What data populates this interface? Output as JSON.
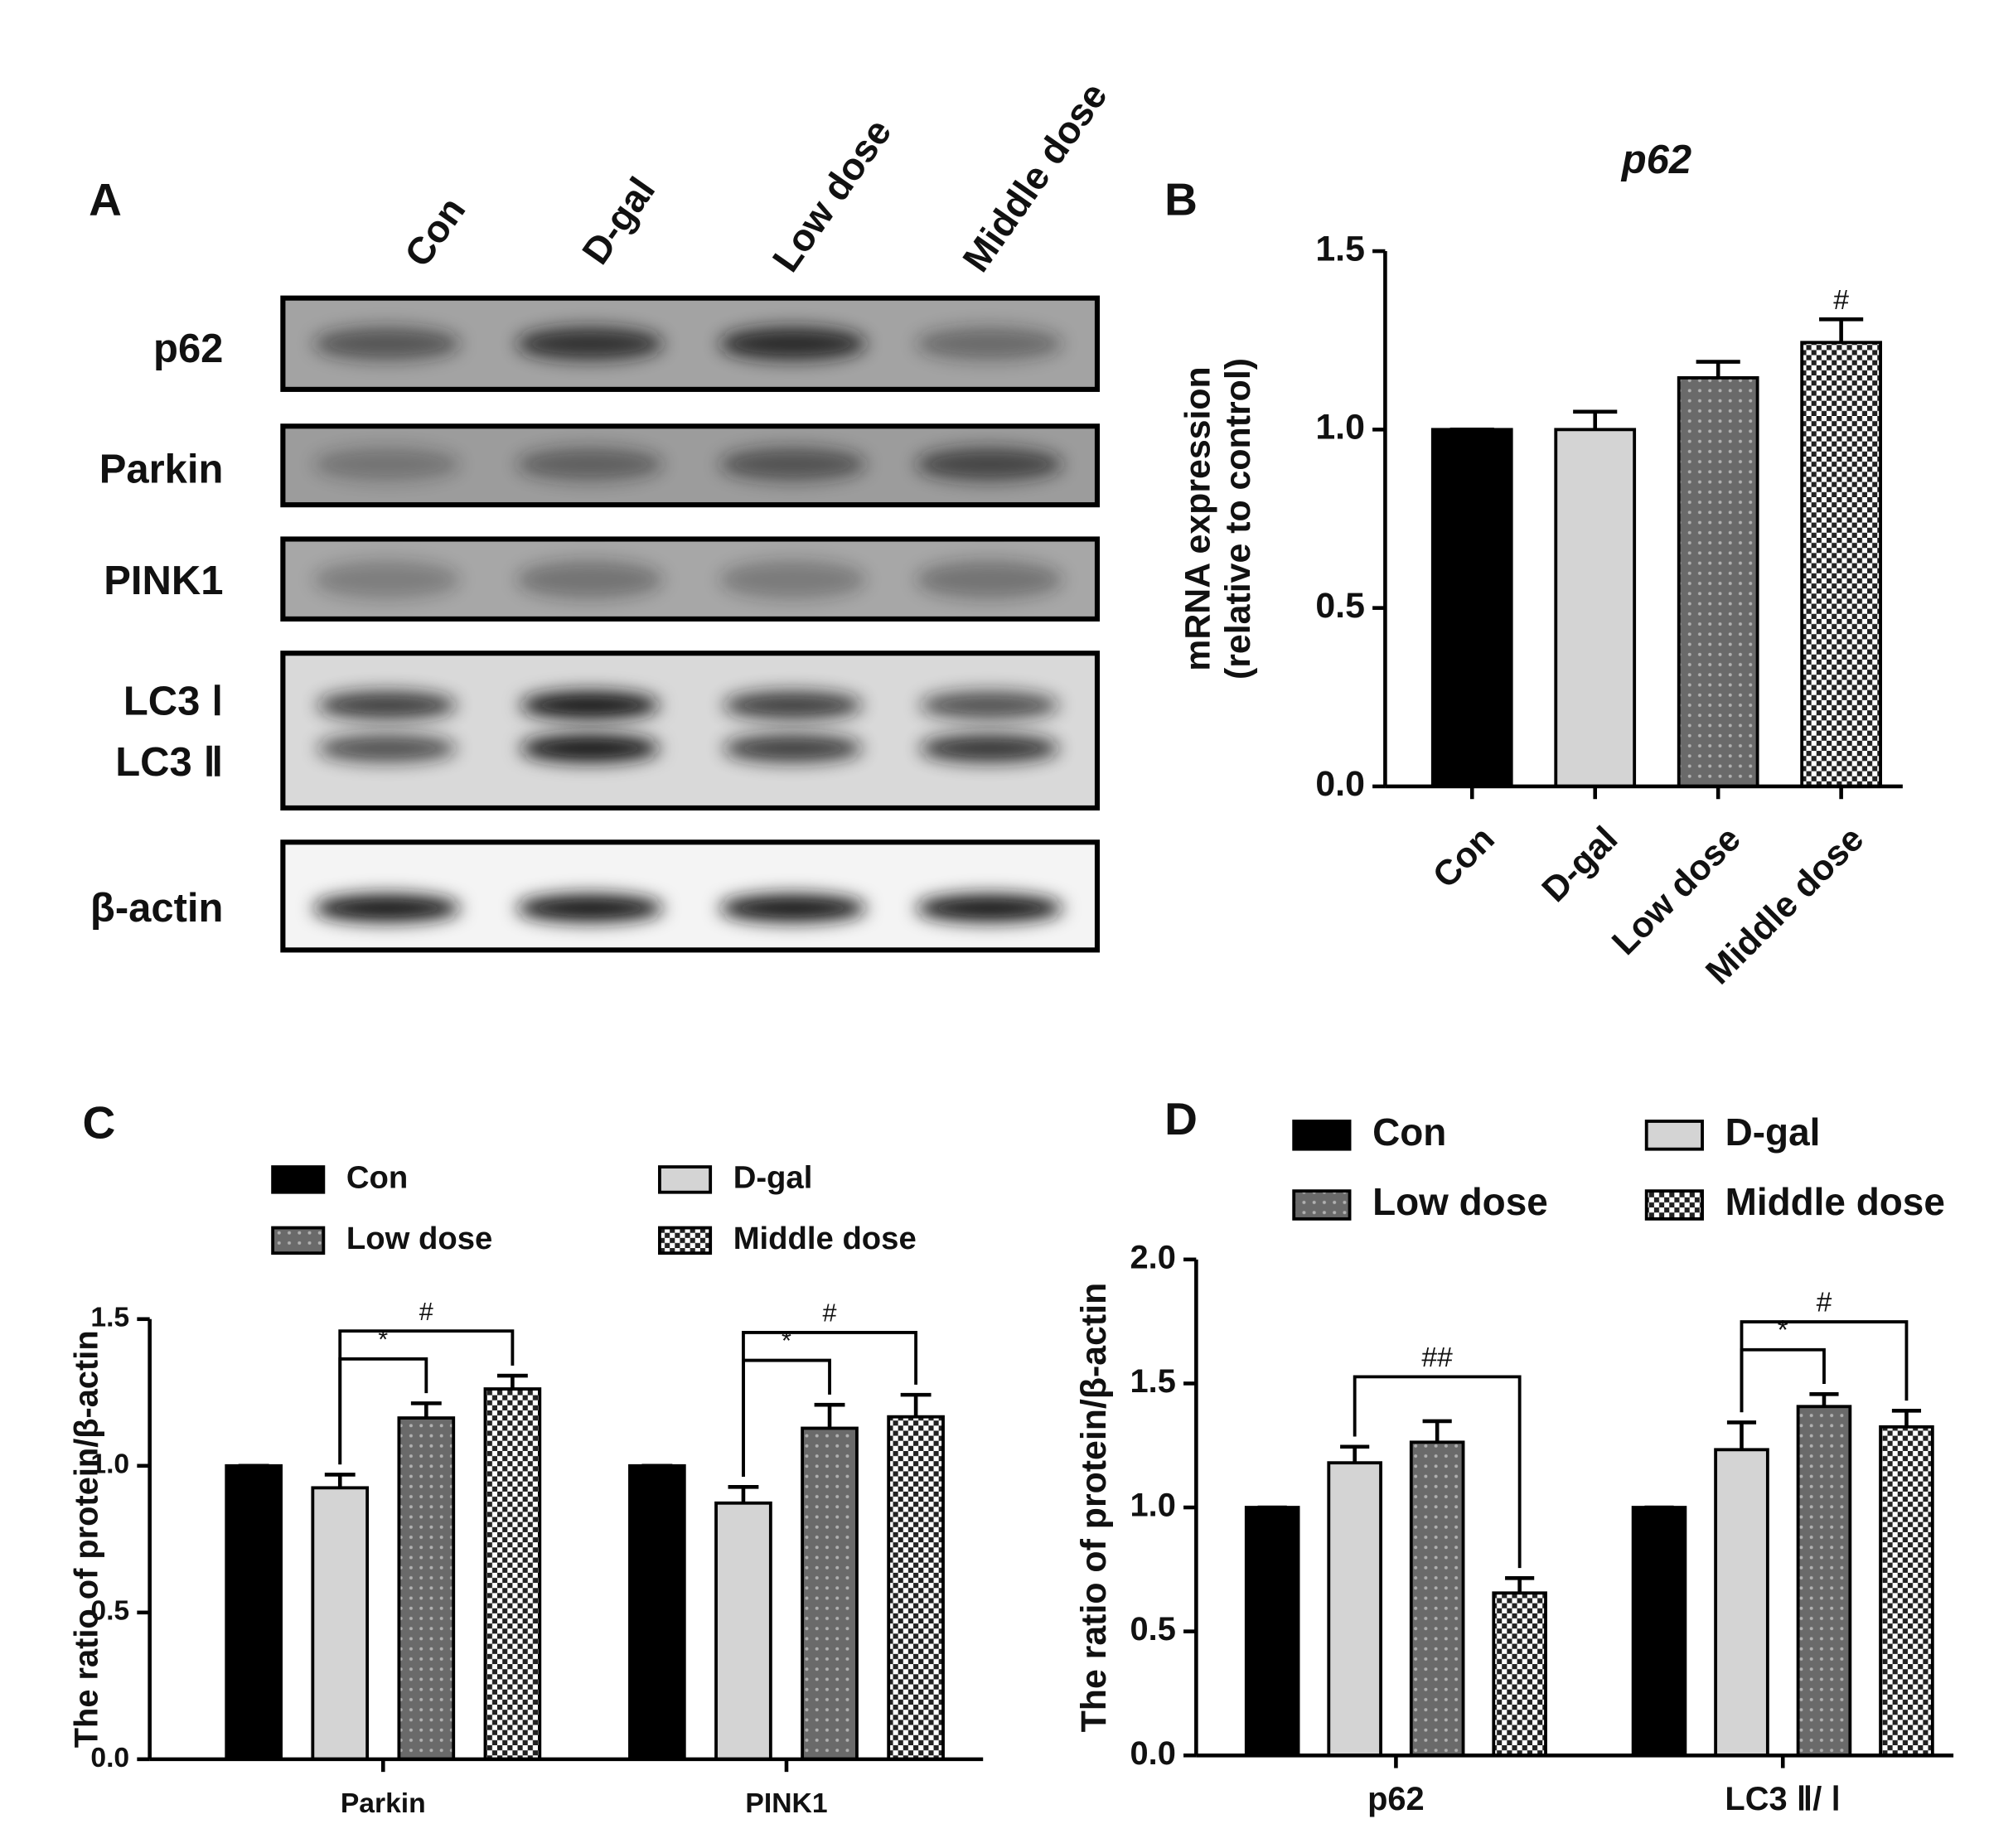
{
  "panel_a": {
    "label": "A",
    "lanes": [
      "Con",
      "D-gal",
      "Low dose",
      "Middle dose"
    ],
    "rows": [
      "p62",
      "Parkin",
      "PINK1",
      "LC3 Ⅰ",
      "LC3 Ⅱ",
      "β-actin"
    ]
  },
  "chart_data": [
    {
      "type": "bar",
      "label": "B",
      "title": "p62",
      "y_label": [
        "mRNA expression",
        "(relative to control)"
      ],
      "categories": [
        "Con",
        "D-gal",
        "Low dose",
        "Middle dose"
      ],
      "values": [
        1.0,
        1.0,
        1.145,
        1.244
      ],
      "errors": [
        0,
        0.05,
        0.045,
        0.065
      ],
      "colors": [
        "#000000",
        "#d4d4d4",
        "#6a6a6a",
        "#ffffff"
      ],
      "patterns": [
        "solid",
        "solid",
        "dots",
        "checker"
      ],
      "ylim": [
        0,
        1.5
      ],
      "yticks": [
        {
          "value": 0,
          "label": "0.0"
        },
        {
          "value": 0.5,
          "label": "0.5"
        },
        {
          "value": 1,
          "label": "1.0"
        },
        {
          "value": 1.5,
          "label": "1.5"
        }
      ],
      "annotations": [
        {
          "text": "#",
          "category": 3
        }
      ]
    },
    {
      "type": "grouped_bar",
      "label": "C",
      "y_label": [
        "The ratio of protein/β-actin"
      ],
      "categories": [
        "Parkin",
        "PINK1"
      ],
      "series": [
        {
          "name": "Con",
          "color": "#000000",
          "pattern": "solid",
          "values": [
            1.0,
            1.0
          ],
          "errors": [
            0,
            0
          ]
        },
        {
          "name": "D-gal",
          "color": "#d4d4d4",
          "pattern": "solid",
          "values": [
            0.925,
            0.873
          ],
          "errors": [
            0.045,
            0.055
          ]
        },
        {
          "name": "Low dose",
          "color": "#6a6a6a",
          "pattern": "dots",
          "values": [
            1.163,
            1.128
          ],
          "errors": [
            0.05,
            0.08
          ]
        },
        {
          "name": "Middle dose",
          "color": "#ffffff",
          "pattern": "checker",
          "values": [
            1.262,
            1.167
          ],
          "errors": [
            0.045,
            0.075
          ]
        }
      ],
      "ylim": [
        0,
        1.5
      ],
      "yticks": [
        {
          "value": 0,
          "label": "0.0"
        },
        {
          "value": 0.5,
          "label": "0.5"
        },
        {
          "value": 1,
          "label": "1.0"
        },
        {
          "value": 1.5,
          "label": "1.5"
        }
      ],
      "annotations": [
        {
          "text": "*",
          "category": 0,
          "from": 1,
          "to": 2
        },
        {
          "text": "#",
          "category": 0,
          "from": 1,
          "to": 3
        },
        {
          "text": "*",
          "category": 1,
          "from": 1,
          "to": 2
        },
        {
          "text": "#",
          "category": 1,
          "from": 1,
          "to": 3
        }
      ]
    },
    {
      "type": "grouped_bar",
      "label": "D",
      "y_label": [
        "The ratio of protein/β-actin"
      ],
      "categories": [
        "p62",
        "LC3 Ⅱ/ Ⅰ"
      ],
      "series": [
        {
          "name": "Con",
          "color": "#000000",
          "pattern": "solid",
          "values": [
            1.0,
            1.0
          ],
          "errors": [
            0,
            0
          ]
        },
        {
          "name": "D-gal",
          "color": "#d4d4d4",
          "pattern": "solid",
          "values": [
            1.18,
            1.233
          ],
          "errors": [
            0.065,
            0.11
          ]
        },
        {
          "name": "Low dose",
          "color": "#6a6a6a",
          "pattern": "dots",
          "values": [
            1.263,
            1.407
          ],
          "errors": [
            0.085,
            0.05
          ]
        },
        {
          "name": "Middle dose",
          "color": "#ffffff",
          "pattern": "checker",
          "values": [
            0.655,
            1.325
          ],
          "errors": [
            0.06,
            0.065
          ]
        }
      ],
      "ylim": [
        0,
        2
      ],
      "yticks": [
        {
          "value": 0,
          "label": "0.0"
        },
        {
          "value": 0.5,
          "label": "0.5"
        },
        {
          "value": 1,
          "label": "1.0"
        },
        {
          "value": 1.5,
          "label": "1.5"
        },
        {
          "value": 2,
          "label": "2.0"
        }
      ],
      "annotations": [
        {
          "text": "##",
          "category": 0,
          "from": 1,
          "to": 3
        },
        {
          "text": "*",
          "category": 1,
          "from": 1,
          "to": 2
        },
        {
          "text": "#",
          "category": 1,
          "from": 1,
          "to": 3
        }
      ]
    }
  ]
}
